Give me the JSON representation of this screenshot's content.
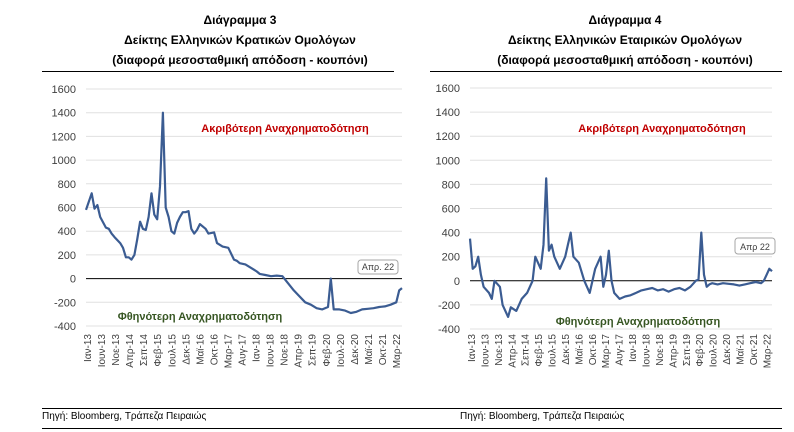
{
  "colors": {
    "line": "#3b5c92",
    "axis": "#000000",
    "grid": "#e0e0e0",
    "annotation_top": "#c00000",
    "annotation_bottom": "#375623",
    "callout_border": "#a6a6a6"
  },
  "chart_data": [
    {
      "type": "line",
      "title_lines": [
        "Διάγραμμα 3",
        "Δείκτης Ελληνικών Κρατικών Ομολόγων",
        "(διαφορά μεσοσταθμική απόδοση - κουπόνι)"
      ],
      "ylim": [
        -400,
        1600
      ],
      "yticks": [
        -400,
        -200,
        0,
        200,
        400,
        600,
        800,
        1000,
        1200,
        1400,
        1600
      ],
      "xlim": [
        "2013-01",
        "2022-04"
      ],
      "xtick_labels": [
        "Ιαν-13",
        "Ιουν-13",
        "Νοε-13",
        "Απρ-14",
        "Σεπ-14",
        "Φεβ-15",
        "Ιουλ-15",
        "Δεκ-15",
        "Μαϊ-16",
        "Οκτ-16",
        "Μαρ-17",
        "Αυγ-17",
        "Ιαν-18",
        "Ιουν-18",
        "Νοε-18",
        "Απρ-19",
        "Σεπ-19",
        "Φεβ-20",
        "Ιουλ-20",
        "Δεκ-20",
        "Μαϊ-21",
        "Οκτ-21",
        "Μαρ-22"
      ],
      "annotations": {
        "top": "Ακριβότερη Αναχρηματοδότηση",
        "bottom": "Φθηνότερη Αναχρηματοδότηση",
        "callout": "Απρ. 22"
      },
      "series": [
        {
          "x": [
            "2013-01",
            "2013-03",
            "2013-04",
            "2013-05",
            "2013-06",
            "2013-08",
            "2013-09",
            "2013-10",
            "2013-11",
            "2014-01",
            "2014-02",
            "2014-03",
            "2014-04",
            "2014-05",
            "2014-06",
            "2014-07",
            "2014-08",
            "2014-09",
            "2014-10",
            "2014-11",
            "2014-12",
            "2015-01",
            "2015-02",
            "2015-03",
            "2015-04",
            "2015-05",
            "2015-06",
            "2015-07",
            "2015-08",
            "2015-09",
            "2015-10",
            "2015-11",
            "2015-12",
            "2016-01",
            "2016-02",
            "2016-03",
            "2016-04",
            "2016-05",
            "2016-07",
            "2016-08",
            "2016-10",
            "2016-11",
            "2017-01",
            "2017-03",
            "2017-05",
            "2017-06",
            "2017-07",
            "2017-09",
            "2017-11",
            "2018-01",
            "2018-02",
            "2018-04",
            "2018-06",
            "2018-08",
            "2018-10",
            "2018-12",
            "2019-02",
            "2019-04",
            "2019-06",
            "2019-08",
            "2019-10",
            "2019-12",
            "2020-02",
            "2020-03",
            "2020-04",
            "2020-06",
            "2020-08",
            "2020-10",
            "2020-12",
            "2021-02",
            "2021-04",
            "2021-06",
            "2021-08",
            "2021-10",
            "2021-12",
            "2022-02",
            "2022-03",
            "2022-04"
          ],
          "y": [
            580,
            720,
            590,
            620,
            520,
            430,
            420,
            380,
            350,
            300,
            260,
            180,
            180,
            160,
            200,
            330,
            480,
            420,
            410,
            520,
            720,
            540,
            500,
            780,
            1400,
            600,
            520,
            400,
            380,
            470,
            520,
            560,
            560,
            570,
            420,
            380,
            410,
            460,
            420,
            380,
            390,
            300,
            270,
            260,
            160,
            150,
            130,
            120,
            90,
            60,
            40,
            30,
            20,
            25,
            20,
            -40,
            -100,
            -150,
            -200,
            -220,
            -250,
            -260,
            -240,
            0,
            -260,
            -260,
            -270,
            -290,
            -280,
            -260,
            -255,
            -250,
            -240,
            -235,
            -220,
            -200,
            -100,
            -80
          ]
        }
      ]
    },
    {
      "type": "line",
      "title_lines": [
        "Διάγραμμα 4",
        "Δείκτης Ελληνικών Εταιρικών Ομολόγων",
        "(διαφορά μεσοσταθμική απόδοση - κουπόνι)"
      ],
      "ylim": [
        -400,
        1600
      ],
      "yticks": [
        -400,
        -200,
        0,
        200,
        400,
        600,
        800,
        1000,
        1200,
        1400,
        1600
      ],
      "xlim": [
        "2013-01",
        "2022-04"
      ],
      "xtick_labels": [
        "Ιαν-13",
        "Ιουν-13",
        "Νοε-13",
        "Απρ-14",
        "Σεπ-14",
        "Φεβ-15",
        "Ιουλ-15",
        "Δεκ-15",
        "Μαϊ-16",
        "Οκτ-16",
        "Μαρ-17",
        "Αυγ-17",
        "Ιαν-18",
        "Ιουν-18",
        "Νοε-18",
        "Απρ-19",
        "Σεπ-19",
        "Φεβ-20",
        "Ιουλ-20",
        "Δεκ-20",
        "Μαϊ-21",
        "Οκτ-21",
        "Μαρ-22"
      ],
      "annotations": {
        "top": "Ακριβότερη Αναχρηματοδότηση",
        "bottom": "Φθηνότερη Αναχρηματοδότηση",
        "callout": "Απρ 22"
      },
      "series": [
        {
          "x": [
            "2013-01",
            "2013-02",
            "2013-03",
            "2013-04",
            "2013-05",
            "2013-06",
            "2013-08",
            "2013-09",
            "2013-10",
            "2013-12",
            "2014-01",
            "2014-03",
            "2014-04",
            "2014-06",
            "2014-08",
            "2014-10",
            "2014-12",
            "2015-01",
            "2015-03",
            "2015-04",
            "2015-05",
            "2015-06",
            "2015-07",
            "2015-08",
            "2015-10",
            "2015-12",
            "2016-01",
            "2016-02",
            "2016-03",
            "2016-05",
            "2016-07",
            "2016-09",
            "2016-11",
            "2017-01",
            "2017-02",
            "2017-03",
            "2017-04",
            "2017-05",
            "2017-06",
            "2017-08",
            "2017-10",
            "2017-12",
            "2018-02",
            "2018-04",
            "2018-06",
            "2018-08",
            "2018-10",
            "2018-12",
            "2019-02",
            "2019-04",
            "2019-06",
            "2019-08",
            "2019-10",
            "2019-12",
            "2020-01",
            "2020-02",
            "2020-03",
            "2020-04",
            "2020-05",
            "2020-06",
            "2020-08",
            "2020-10",
            "2020-12",
            "2021-02",
            "2021-04",
            "2021-06",
            "2021-08",
            "2021-10",
            "2021-12",
            "2022-01",
            "2022-02",
            "2022-03",
            "2022-04"
          ],
          "y": [
            350,
            100,
            120,
            200,
            50,
            -50,
            -100,
            -150,
            0,
            -50,
            -200,
            -300,
            -220,
            -250,
            -150,
            -100,
            0,
            200,
            100,
            300,
            850,
            250,
            300,
            200,
            100,
            200,
            300,
            400,
            200,
            150,
            0,
            -100,
            100,
            200,
            -50,
            50,
            250,
            0,
            -100,
            -150,
            -130,
            -120,
            -100,
            -80,
            -70,
            -60,
            -80,
            -70,
            -90,
            -70,
            -60,
            -80,
            -50,
            0,
            10,
            400,
            50,
            -50,
            -30,
            -20,
            -30,
            -20,
            -25,
            -30,
            -40,
            -30,
            -20,
            -10,
            -20,
            0,
            50,
            100,
            80
          ]
        }
      ]
    }
  ],
  "sources": [
    "Πηγή: Bloomberg, Τράπεζα Πειραιώς",
    "Πηγή: Bloomberg, Τράπεζα Πειραιώς"
  ]
}
